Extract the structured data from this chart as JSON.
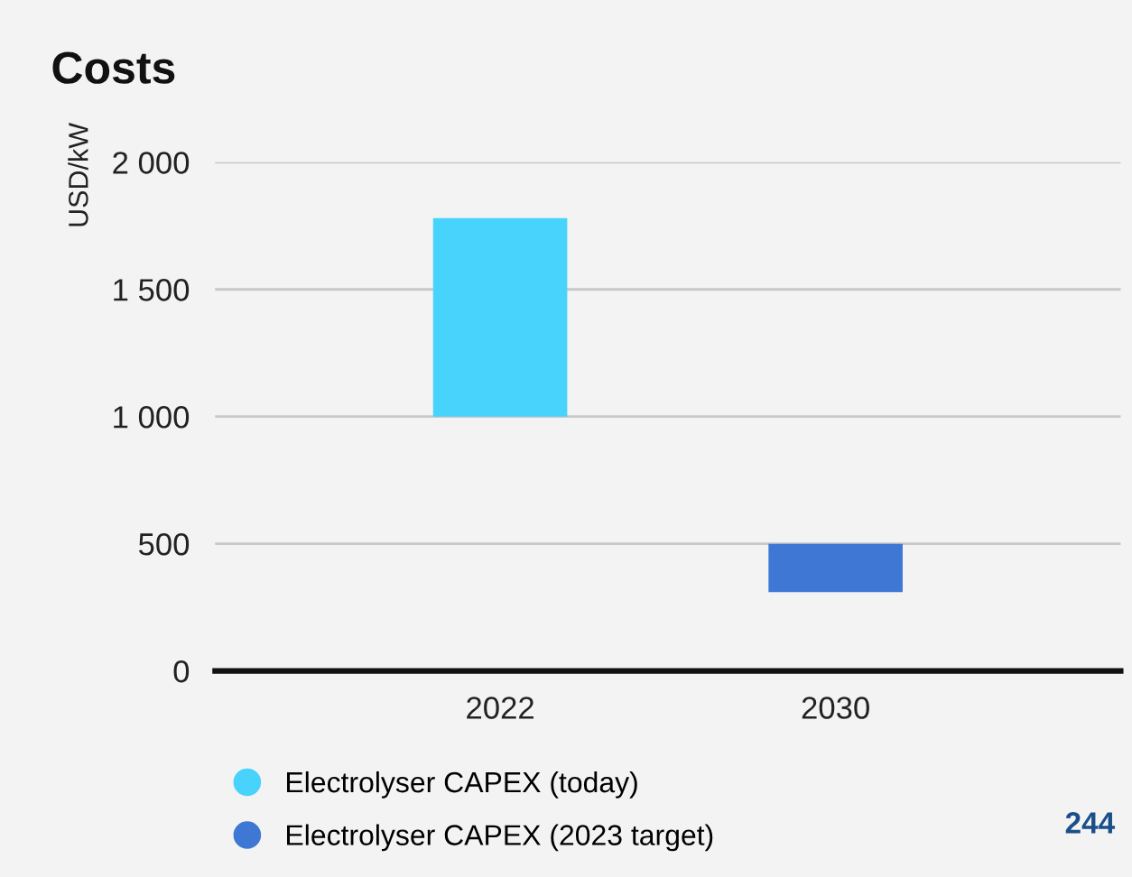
{
  "chart_data": {
    "type": "bar",
    "title": "Costs",
    "ylabel": "USD/kW",
    "categories": [
      "2022",
      "2030"
    ],
    "series": [
      {
        "name": "Electrolyser CAPEX (today)",
        "color": "#48d3fd",
        "values": [
          780,
          null
        ],
        "base": [
          1000,
          null
        ]
      },
      {
        "name": "Electrolyser CAPEX (2023 target)",
        "color": "#3e78d4",
        "values": [
          null,
          190
        ],
        "base": [
          null,
          310
        ]
      }
    ],
    "ylim": [
      0,
      2000
    ],
    "yticks": [
      0,
      500,
      {
        "value": 1000,
        "label": "1 000"
      },
      {
        "value": 1500,
        "label": "1 500"
      },
      {
        "value": 2000,
        "label": "2 000"
      }
    ],
    "grid": "y",
    "legend": "bottom",
    "annotations": [
      "244"
    ]
  }
}
